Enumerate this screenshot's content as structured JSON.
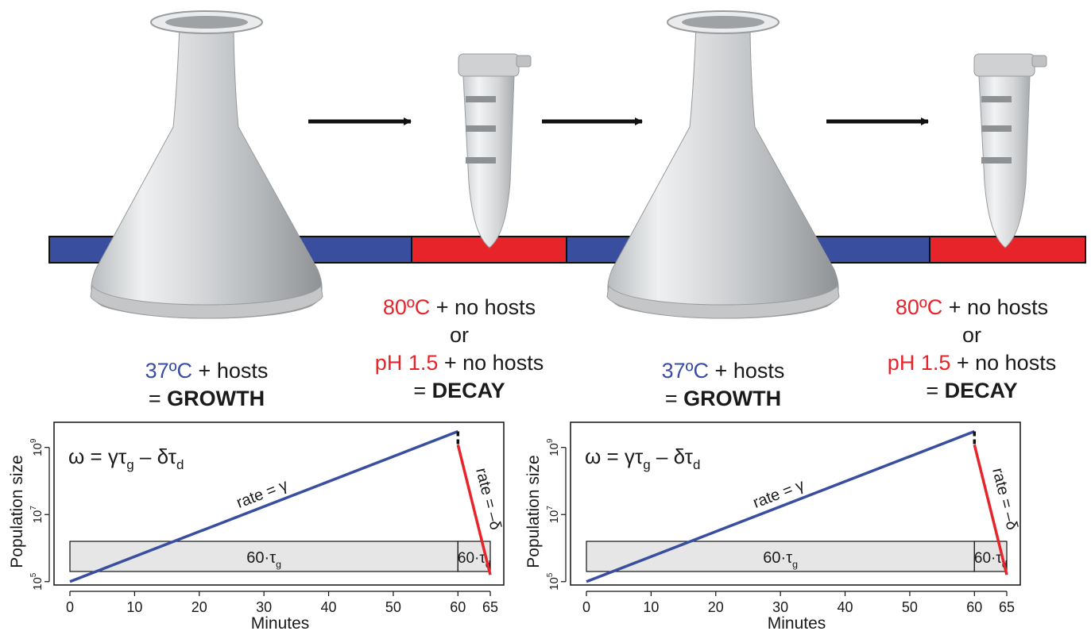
{
  "colors": {
    "growth": "#3a4ea0",
    "decay": "#e8242b",
    "text": "#1a1a1a",
    "box_fill": "#e6e6e6"
  },
  "icons": [
    "flask-icon",
    "tube-icon",
    "arrow-right-icon"
  ],
  "labels": {
    "growth": {
      "temp": "37ºC",
      "rest": " + hosts",
      "eq": "= ",
      "word": "GROWTH"
    },
    "decay": {
      "temp": "80ºC",
      "rest1": " + no hosts",
      "or": "or",
      "ph": "pH 1.5",
      "rest2": " + no hosts",
      "eq": "= ",
      "word": "DECAY"
    }
  },
  "chart_data": [
    {
      "type": "line",
      "formula": {
        "lhs": "ω = γτ",
        "sub1": "g",
        "mid": " – δτ",
        "sub2": "d"
      },
      "xlabel": "Minutes",
      "ylabel": "Population size",
      "xlim": [
        0,
        65
      ],
      "ylog": true,
      "xticks": [
        "0",
        "10",
        "20",
        "30",
        "40",
        "50",
        "60",
        "65"
      ],
      "yticks": [
        {
          "base": "10",
          "exp": "5"
        },
        {
          "base": "10",
          "exp": "7"
        },
        {
          "base": "10",
          "exp": "9"
        }
      ],
      "series": [
        {
          "segment": "growth",
          "x": [
            0,
            60
          ],
          "y": [
            100000,
            3000000000
          ]
        },
        {
          "segment": "decay",
          "x": [
            60,
            65
          ],
          "y": [
            1200000000,
            160000
          ]
        }
      ],
      "annotations": {
        "growth_rate": "rate = γ",
        "decay_rate": "rate = –δ"
      },
      "phase_boxes": [
        {
          "x": [
            0,
            60
          ],
          "label": "60·τ",
          "sub": "g"
        },
        {
          "x": [
            60,
            65
          ],
          "label": "60·τ",
          "sub": "d"
        }
      ]
    },
    {
      "type": "line",
      "formula": {
        "lhs": "ω = γτ",
        "sub1": "g",
        "mid": " – δτ",
        "sub2": "d"
      },
      "xlabel": "Minutes",
      "ylabel": "Population size",
      "xlim": [
        0,
        65
      ],
      "ylog": true,
      "xticks": [
        "0",
        "10",
        "20",
        "30",
        "40",
        "50",
        "60",
        "65"
      ],
      "yticks": [
        {
          "base": "10",
          "exp": "5"
        },
        {
          "base": "10",
          "exp": "7"
        },
        {
          "base": "10",
          "exp": "9"
        }
      ],
      "series": [
        {
          "segment": "growth",
          "x": [
            0,
            60
          ],
          "y": [
            100000,
            3000000000
          ]
        },
        {
          "segment": "decay",
          "x": [
            60,
            65
          ],
          "y": [
            1200000000,
            160000
          ]
        }
      ],
      "annotations": {
        "growth_rate": "rate = γ",
        "decay_rate": "rate = –δ"
      },
      "phase_boxes": [
        {
          "x": [
            0,
            60
          ],
          "label": "60·τ",
          "sub": "g"
        },
        {
          "x": [
            60,
            65
          ],
          "label": "60·τ",
          "sub": "d"
        }
      ]
    }
  ]
}
